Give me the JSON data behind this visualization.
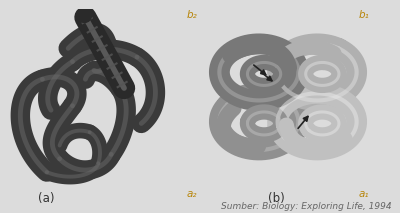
{
  "bg_color": "#dcdcdc",
  "label_a": "(a)",
  "label_b": "(b)",
  "subunit_labels": [
    "b₂",
    "b₁",
    "a₂",
    "a₁"
  ],
  "subunit_color": "#b8860b",
  "caption": "Sumber: Biology: Exploring Life, 1994",
  "caption_color": "#666666",
  "caption_fontsize": 6.5,
  "label_fontsize": 8.5,
  "subunit_fontsize": 7.5,
  "dark_ribbon_color": "#3a3a3a",
  "dark_ribbon_hi": "#6a6a6a",
  "left_bg": "#d8d8d8",
  "right_bg": "#d0d0d0"
}
